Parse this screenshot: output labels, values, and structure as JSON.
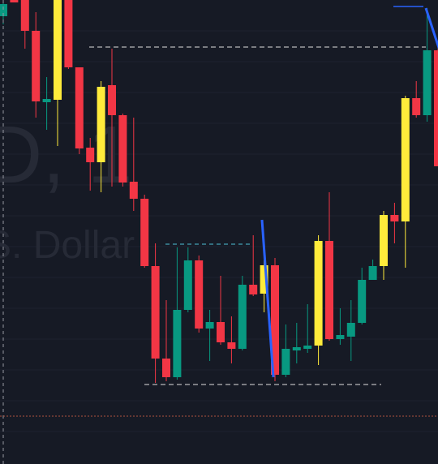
{
  "chart_data": {
    "type": "candlestick",
    "watermark": [
      "D, 1",
      "S. Dollar"
    ],
    "open": [
      552,
      572,
      572,
      534,
      446,
      449,
      572,
      489,
      390,
      372,
      467,
      430,
      348,
      327,
      244,
      130,
      107,
      190,
      251,
      167,
      175,
      150,
      142,
      221,
      210,
      245,
      110,
      140,
      142,
      146,
      275,
      154,
      157,
      174,
      227,
      244,
      307,
      299,
      451,
      430,
      510
    ],
    "high": [
      572,
      572,
      572,
      557,
      477,
      572,
      572,
      489,
      402,
      472,
      512,
      432,
      427,
      332,
      272,
      202,
      267,
      267,
      257,
      190,
      232,
      182,
      232,
      282,
      252,
      254,
      172,
      174,
      197,
      282,
      335,
      192,
      202,
      242,
      252,
      312,
      322,
      454,
      472,
      562,
      517
    ],
    "low": [
      542,
      569,
      512,
      427,
      412,
      392,
      487,
      382,
      337,
      335,
      342,
      342,
      312,
      242,
      100,
      102,
      104,
      187,
      162,
      127,
      147,
      124,
      140,
      207,
      187,
      102,
      107,
      124,
      137,
      122,
      152,
      147,
      127,
      172,
      227,
      227,
      272,
      242,
      427,
      422,
      367
    ],
    "close": [
      567,
      569,
      534,
      447,
      450,
      572,
      489,
      389,
      372,
      465,
      430,
      347,
      327,
      244,
      130,
      107,
      190,
      251,
      167,
      175,
      150,
      142,
      221,
      209,
      245,
      110,
      142,
      144,
      146,
      275,
      154,
      159,
      174,
      227,
      244,
      307,
      299,
      451,
      430,
      510,
      367
    ],
    "candle_colors": [
      "#089981",
      "#f23645",
      "#f23645",
      "#f23645",
      "#089981",
      "#ffeb3b",
      "#f23645",
      "#f23645",
      "#f23645",
      "#ffeb3b",
      "#f23645",
      "#f23645",
      "#f23645",
      "#f23645",
      "#f23645",
      "#f23645",
      "#089981",
      "#089981",
      "#f23645",
      "#089981",
      "#f23645",
      "#f23645",
      "#089981",
      "#f23645",
      "#ffeb3b",
      "#f23645",
      "#089981",
      "#089981",
      "#089981",
      "#ffeb3b",
      "#f23645",
      "#089981",
      "#089981",
      "#089981",
      "#089981",
      "#ffeb3b",
      "#f23645",
      "#ffeb3b",
      "#f23645",
      "#089981",
      "#f23645"
    ],
    "ylim": [
      0,
      572
    ]
  }
}
